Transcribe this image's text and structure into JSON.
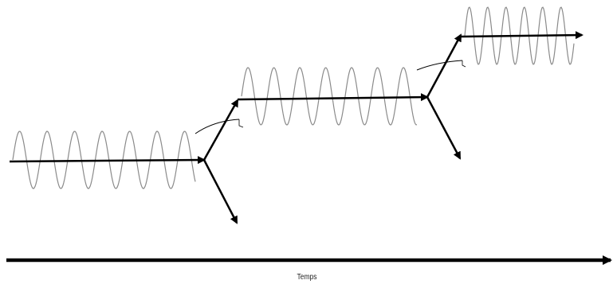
{
  "diagram": {
    "time_axis_label": "Temps"
  },
  "colors": {
    "wave": "#8a8a8a",
    "arrow": "#000000",
    "background": "#ffffff"
  }
}
